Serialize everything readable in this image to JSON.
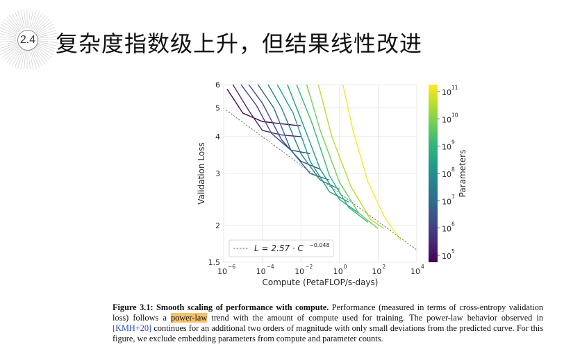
{
  "slide": {
    "number": "2.4",
    "title": "复杂度指数级上升，但结果线性改进"
  },
  "figure": {
    "ylabel": "Validation Loss",
    "xlabel": "Compute (PetaFLOP/s-days)",
    "colorbar_label": "Parameters",
    "legend": "L = 2.57 · C",
    "legend_exp": "−0.048",
    "y_ticks": [
      "6",
      "5",
      "4",
      "3",
      "2",
      "1.5"
    ],
    "x_ticks": [
      {
        "base": "10",
        "exp": "−6"
      },
      {
        "base": "10",
        "exp": "−4"
      },
      {
        "base": "10",
        "exp": "−2"
      },
      {
        "base": "10",
        "exp": "0"
      },
      {
        "base": "10",
        "exp": "2"
      },
      {
        "base": "10",
        "exp": "4"
      }
    ],
    "cbar_ticks": [
      {
        "base": "10",
        "exp": "11"
      },
      {
        "base": "10",
        "exp": "10"
      },
      {
        "base": "10",
        "exp": "9"
      },
      {
        "base": "10",
        "exp": "8"
      },
      {
        "base": "10",
        "exp": "7"
      },
      {
        "base": "10",
        "exp": "6"
      },
      {
        "base": "10",
        "exp": "5"
      }
    ]
  },
  "caption": {
    "label": "Figure 3.1: Smooth scaling of performance with compute.",
    "part1": " Performance (measured in terms of cross-entropy validation loss) follows a ",
    "highlight": "power-law",
    "part2": " trend with the amount of compute used for training. The power-law behavior observed in ",
    "cite": "[KMH+20]",
    "part3": " continues for an additional two orders of magnitude with only small deviations from the predicted curve. For this figure, we exclude embedding parameters from compute and parameter counts."
  },
  "colors": {
    "viridis": [
      "#440154",
      "#482878",
      "#3e4989",
      "#31688e",
      "#26828e",
      "#1f9e89",
      "#35b779",
      "#6ece58",
      "#b5de2b",
      "#fde725"
    ]
  },
  "chart_data": {
    "type": "line",
    "xlabel": "Compute (PetaFLOP/s-days)",
    "ylabel": "Validation Loss",
    "xscale": "log",
    "yscale": "log",
    "xlim": [
      1e-06,
      10000.0
    ],
    "ylim": [
      1.5,
      6
    ],
    "grid": true,
    "legend_position": "bottom-left",
    "power_law_fit": {
      "a": 2.57,
      "b": -0.048
    },
    "colorbar": {
      "label": "Parameters",
      "scale": "log",
      "range": [
        100000.0,
        100000000000.0
      ]
    },
    "series": [
      {
        "params": 100000.0,
        "x": [
          1.5e-06,
          1e-05,
          0.0001,
          0.001,
          0.01
        ],
        "y": [
          5.8,
          4.8,
          4.5,
          4.42,
          4.35
        ]
      },
      {
        "params": 300000.0,
        "x": [
          3e-06,
          2e-05,
          0.0001,
          0.001,
          0.01
        ],
        "y": [
          6.0,
          4.9,
          4.2,
          4.05,
          4.0
        ]
      },
      {
        "params": 1000000.0,
        "x": [
          8e-06,
          5e-05,
          0.0003,
          0.003,
          0.03
        ],
        "y": [
          6.0,
          5.1,
          4.1,
          3.6,
          3.5
        ]
      },
      {
        "params": 3000000.0,
        "x": [
          2e-05,
          0.0001,
          0.001,
          0.01,
          0.1
        ],
        "y": [
          6.0,
          5.2,
          3.9,
          3.3,
          3.1
        ]
      },
      {
        "params": 10000000.0,
        "x": [
          6e-05,
          0.0004,
          0.003,
          0.03,
          0.3
        ],
        "y": [
          6.0,
          5.0,
          3.6,
          3.0,
          2.85
        ]
      },
      {
        "params": 30000000.0,
        "x": [
          0.0002,
          0.001,
          0.01,
          0.1,
          1.0
        ],
        "y": [
          6.0,
          5.0,
          3.5,
          2.85,
          2.65
        ]
      },
      {
        "params": 100000000.0,
        "x": [
          0.0006,
          0.004,
          0.03,
          0.3,
          3.0
        ],
        "y": [
          6.0,
          4.8,
          3.3,
          2.6,
          2.4
        ]
      },
      {
        "params": 300000000.0,
        "x": [
          0.002,
          0.01,
          0.1,
          1.0,
          10.0
        ],
        "y": [
          6.0,
          4.6,
          3.1,
          2.45,
          2.2
        ]
      },
      {
        "params": 1000000000.0,
        "x": [
          0.006,
          0.04,
          0.3,
          3.0,
          30.0
        ],
        "y": [
          6.0,
          4.4,
          2.95,
          2.3,
          2.05
        ]
      },
      {
        "params": 3000000000.0,
        "x": [
          0.02,
          0.1,
          1.0,
          10.0,
          100.0
        ],
        "y": [
          6.0,
          4.2,
          2.8,
          2.2,
          1.95
        ]
      },
      {
        "params": 13000000000.0,
        "x": [
          0.08,
          0.4,
          4.0,
          40.0,
          200.0
        ],
        "y": [
          6.0,
          4.0,
          2.7,
          2.1,
          1.95
        ]
      },
      {
        "params": 175000000000.0,
        "x": [
          1.5,
          5.0,
          30.0,
          200.0,
          1500.0
        ],
        "y": [
          6.0,
          4.2,
          2.8,
          2.15,
          1.78
        ]
      }
    ]
  }
}
